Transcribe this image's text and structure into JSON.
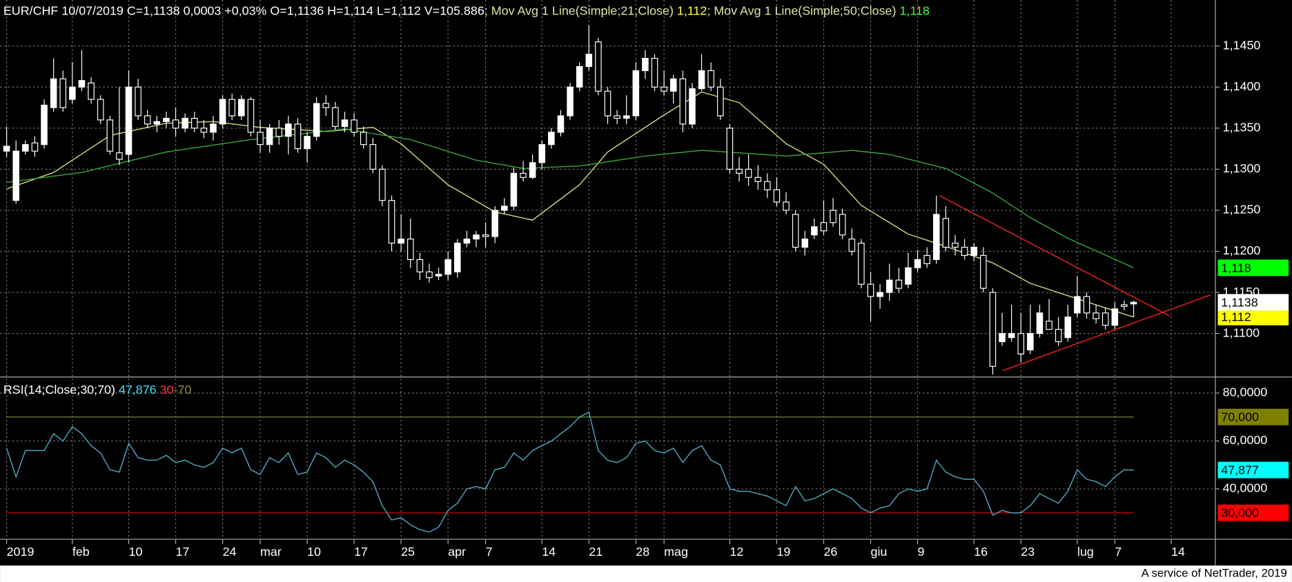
{
  "chart_data": [
    {
      "type": "candlestick",
      "header": [
        {
          "text": "EUR/CHF 10/07/2019 C=1,1138 0,0003 +0,03% O=1,1136 H=1,114 L=1,112 V=105.886",
          "color": "#ffffff"
        },
        {
          "text": "; Mov Avg 1 Line(Simple;21;Close)",
          "color": "#d8e8a0"
        },
        {
          "text": " 1,112",
          "color": "#ffff40"
        },
        {
          "text": "; Mov Avg 1 Line(Simple;50;Close)",
          "color": "#d8e8a0"
        },
        {
          "text": " 1,118",
          "color": "#40ff40"
        }
      ],
      "candles": [
        [
          1.1322,
          1.1352,
          1.1315,
          1.1328
        ],
        [
          1.1262,
          1.1335,
          1.1258,
          1.1322
        ],
        [
          1.1322,
          1.1335,
          1.1318,
          1.133
        ],
        [
          1.1332,
          1.134,
          1.1315,
          1.1322
        ],
        [
          1.133,
          1.1385,
          1.1325,
          1.1378
        ],
        [
          1.1375,
          1.1435,
          1.137,
          1.141
        ],
        [
          1.141,
          1.142,
          1.137,
          1.1375
        ],
        [
          1.1385,
          1.143,
          1.138,
          1.14
        ],
        [
          1.14,
          1.1445,
          1.1395,
          1.1408
        ],
        [
          1.1405,
          1.1412,
          1.138,
          1.1385
        ],
        [
          1.1385,
          1.139,
          1.1355,
          1.136
        ],
        [
          1.136,
          1.1365,
          1.1318,
          1.1322
        ],
        [
          1.132,
          1.14,
          1.1305,
          1.1312
        ],
        [
          1.1318,
          1.142,
          1.1308,
          1.14
        ],
        [
          1.14,
          1.141,
          1.136,
          1.1365
        ],
        [
          1.1365,
          1.1372,
          1.135,
          1.1355
        ],
        [
          1.1355,
          1.1365,
          1.1345,
          1.1358
        ],
        [
          1.1358,
          1.137,
          1.135,
          1.1362
        ],
        [
          1.136,
          1.1375,
          1.134,
          1.135
        ],
        [
          1.135,
          1.1368,
          1.1345,
          1.1362
        ],
        [
          1.1362,
          1.137,
          1.1345,
          1.135
        ],
        [
          1.135,
          1.136,
          1.1338,
          1.1345
        ],
        [
          1.1345,
          1.1365,
          1.1335,
          1.1355
        ],
        [
          1.1355,
          1.139,
          1.135,
          1.1385
        ],
        [
          1.1385,
          1.1392,
          1.136,
          1.1365
        ],
        [
          1.1365,
          1.139,
          1.136,
          1.1385
        ],
        [
          1.1385,
          1.1388,
          1.134,
          1.1345
        ],
        [
          1.1345,
          1.136,
          1.132,
          1.133
        ],
        [
          1.133,
          1.1355,
          1.132,
          1.135
        ],
        [
          1.135,
          1.136,
          1.133,
          1.134
        ],
        [
          1.134,
          1.1365,
          1.1318,
          1.1355
        ],
        [
          1.1355,
          1.1362,
          1.132,
          1.1325
        ],
        [
          1.1325,
          1.1345,
          1.1308,
          1.134
        ],
        [
          1.134,
          1.1388,
          1.1335,
          1.138
        ],
        [
          1.138,
          1.139,
          1.1365,
          1.1375
        ],
        [
          1.1375,
          1.1382,
          1.1348,
          1.1352
        ],
        [
          1.1352,
          1.137,
          1.1345,
          1.136
        ],
        [
          1.136,
          1.1368,
          1.134,
          1.1345
        ],
        [
          1.1345,
          1.1352,
          1.1325,
          1.133
        ],
        [
          1.133,
          1.1338,
          1.1295,
          1.13
        ],
        [
          1.13,
          1.1305,
          1.1255,
          1.1262
        ],
        [
          1.1262,
          1.1268,
          1.12,
          1.121
        ],
        [
          1.121,
          1.1245,
          1.12,
          1.1215
        ],
        [
          1.1215,
          1.124,
          1.118,
          1.119
        ],
        [
          1.119,
          1.1198,
          1.1165,
          1.1175
        ],
        [
          1.1175,
          1.1185,
          1.1162,
          1.1168
        ],
        [
          1.117,
          1.118,
          1.1165,
          1.1172
        ],
        [
          1.1172,
          1.12,
          1.1165,
          1.119
        ],
        [
          1.1175,
          1.1215,
          1.1168,
          1.121
        ],
        [
          1.121,
          1.1225,
          1.1205,
          1.1215
        ],
        [
          1.1215,
          1.1225,
          1.1205,
          1.122
        ],
        [
          1.122,
          1.1235,
          1.1205,
          1.1218
        ],
        [
          1.1218,
          1.1255,
          1.121,
          1.125
        ],
        [
          1.125,
          1.1265,
          1.1245,
          1.1255
        ],
        [
          1.1255,
          1.1302,
          1.125,
          1.1295
        ],
        [
          1.1295,
          1.131,
          1.1285,
          1.129
        ],
        [
          1.129,
          1.1318,
          1.1288,
          1.1308
        ],
        [
          1.1308,
          1.1335,
          1.13,
          1.133
        ],
        [
          1.133,
          1.135,
          1.1325,
          1.1345
        ],
        [
          1.1345,
          1.1372,
          1.134,
          1.1365
        ],
        [
          1.1365,
          1.1405,
          1.136,
          1.14
        ],
        [
          1.14,
          1.143,
          1.1395,
          1.1425
        ],
        [
          1.1425,
          1.1475,
          1.142,
          1.144
        ],
        [
          1.1455,
          1.146,
          1.139,
          1.1395
        ],
        [
          1.1395,
          1.14,
          1.1355,
          1.1365
        ],
        [
          1.1365,
          1.1372,
          1.1355,
          1.1362
        ],
        [
          1.1362,
          1.139,
          1.1355,
          1.1365
        ],
        [
          1.1365,
          1.143,
          1.136,
          1.142
        ],
        [
          1.142,
          1.1445,
          1.141,
          1.1435
        ],
        [
          1.1435,
          1.144,
          1.1395,
          1.14
        ],
        [
          1.14,
          1.142,
          1.139,
          1.1395
        ],
        [
          1.1395,
          1.1415,
          1.138,
          1.141
        ],
        [
          1.141,
          1.142,
          1.1345,
          1.1355
        ],
        [
          1.1355,
          1.1405,
          1.135,
          1.1398
        ],
        [
          1.1398,
          1.144,
          1.1395,
          1.142
        ],
        [
          1.142,
          1.143,
          1.1395,
          1.14
        ],
        [
          1.14,
          1.141,
          1.136,
          1.1365
        ],
        [
          1.135,
          1.1355,
          1.1295,
          1.13
        ],
        [
          1.13,
          1.1315,
          1.1285,
          1.1295
        ],
        [
          1.13,
          1.1318,
          1.128,
          1.129
        ],
        [
          1.129,
          1.1305,
          1.1275,
          1.1285
        ],
        [
          1.1285,
          1.1295,
          1.1265,
          1.1275
        ],
        [
          1.1275,
          1.129,
          1.1255,
          1.126
        ],
        [
          1.126,
          1.1272,
          1.1245,
          1.125
        ],
        [
          1.1245,
          1.125,
          1.12,
          1.1205
        ],
        [
          1.1205,
          1.1225,
          1.1195,
          1.1215
        ],
        [
          1.122,
          1.124,
          1.1215,
          1.123
        ],
        [
          1.1235,
          1.1262,
          1.122,
          1.1225
        ],
        [
          1.125,
          1.1265,
          1.123,
          1.1235
        ],
        [
          1.1245,
          1.1252,
          1.1215,
          1.122
        ],
        [
          1.1215,
          1.1228,
          1.1195,
          1.12
        ],
        [
          1.121,
          1.1215,
          1.1155,
          1.116
        ],
        [
          1.116,
          1.1175,
          1.1115,
          1.1145
        ],
        [
          1.1145,
          1.116,
          1.113,
          1.115
        ],
        [
          1.115,
          1.1185,
          1.114,
          1.1165
        ],
        [
          1.1165,
          1.118,
          1.115,
          1.1155
        ],
        [
          1.116,
          1.1198,
          1.1155,
          1.118
        ],
        [
          1.118,
          1.1202,
          1.1175,
          1.119
        ],
        [
          1.1195,
          1.1205,
          1.118,
          1.1185
        ],
        [
          1.119,
          1.1268,
          1.1185,
          1.1245
        ],
        [
          1.124,
          1.1255,
          1.12,
          1.1205
        ],
        [
          1.121,
          1.122,
          1.1195,
          1.1205
        ],
        [
          1.1205,
          1.1215,
          1.119,
          1.1195
        ],
        [
          1.1195,
          1.121,
          1.1188,
          1.1205
        ],
        [
          1.1195,
          1.1205,
          1.115,
          1.1155
        ],
        [
          1.115,
          1.1155,
          1.105,
          1.106
        ],
        [
          1.109,
          1.1125,
          1.1085,
          1.11
        ],
        [
          1.1095,
          1.1135,
          1.109,
          1.11
        ],
        [
          1.11,
          1.1125,
          1.1065,
          1.1075
        ],
        [
          1.108,
          1.1135,
          1.1075,
          1.11
        ],
        [
          1.11,
          1.1135,
          1.1095,
          1.1125
        ],
        [
          1.1115,
          1.1142,
          1.1105,
          1.1105
        ],
        [
          1.1105,
          1.112,
          1.1085,
          1.109
        ],
        [
          1.1095,
          1.1135,
          1.109,
          1.112
        ],
        [
          1.1125,
          1.117,
          1.112,
          1.1145
        ],
        [
          1.1145,
          1.115,
          1.1118,
          1.1125
        ],
        [
          1.1125,
          1.1135,
          1.1112,
          1.1118
        ],
        [
          1.1125,
          1.1132,
          1.1105,
          1.111
        ],
        [
          1.111,
          1.1138,
          1.1105,
          1.113
        ],
        [
          1.1135,
          1.114,
          1.1128,
          1.1133
        ],
        [
          1.1136,
          1.114,
          1.112,
          1.1138
        ]
      ],
      "xlim": [
        -0.7,
        128.7
      ],
      "xticks": [
        {
          "value": 0,
          "label": "2019"
        },
        {
          "value": 7,
          "label": "feb"
        },
        {
          "value": 13,
          "label": "10"
        },
        {
          "value": 18,
          "label": "17"
        },
        {
          "value": 23,
          "label": "24"
        },
        {
          "value": 27,
          "label": "mar"
        },
        {
          "value": 32,
          "label": "10"
        },
        {
          "value": 37,
          "label": "17"
        },
        {
          "value": 42,
          "label": "25"
        },
        {
          "value": 47,
          "label": "apr"
        },
        {
          "value": 51,
          "label": "7"
        },
        {
          "value": 57,
          "label": "14"
        },
        {
          "value": 62,
          "label": "21"
        },
        {
          "value": 67,
          "label": "28"
        },
        {
          "value": 70,
          "label": "mag"
        },
        {
          "value": 77,
          "label": "12"
        },
        {
          "value": 82,
          "label": "19"
        },
        {
          "value": 87,
          "label": "26"
        },
        {
          "value": 92,
          "label": "giu"
        },
        {
          "value": 97,
          "label": "9"
        },
        {
          "value": 103,
          "label": "16"
        },
        {
          "value": 108,
          "label": "23"
        },
        {
          "value": 114,
          "label": "lug"
        },
        {
          "value": 118,
          "label": "7"
        },
        {
          "value": 124,
          "label": "14"
        }
      ],
      "ylim": [
        1.1047,
        1.1506
      ],
      "yticks": [
        {
          "value": 1.11,
          "label": "1,1100"
        },
        {
          "value": 1.115,
          "label": "1,1150"
        },
        {
          "value": 1.12,
          "label": "1,1200"
        },
        {
          "value": 1.125,
          "label": "1,1250"
        },
        {
          "value": 1.13,
          "label": "1,1300"
        },
        {
          "value": 1.135,
          "label": "1,1350"
        },
        {
          "value": 1.14,
          "label": "1,1400"
        },
        {
          "value": 1.145,
          "label": "1,1450"
        }
      ],
      "grid": true,
      "series": [
        {
          "color": "#d7d77a",
          "x": [
            0,
            5,
            11,
            17,
            22,
            27,
            34,
            39,
            42,
            47,
            52,
            56,
            61,
            64,
            70,
            74,
            78,
            83,
            87,
            91,
            96,
            100,
            105,
            109,
            113,
            120
          ],
          "values": [
            1.1276,
            1.1296,
            1.1341,
            1.1356,
            1.1358,
            1.1351,
            1.1346,
            1.1351,
            1.1331,
            1.1281,
            1.1248,
            1.1238,
            1.1281,
            1.1321,
            1.1366,
            1.1394,
            1.1381,
            1.1331,
            1.1306,
            1.1256,
            1.1221,
            1.1206,
            1.1186,
            1.1161,
            1.1146,
            1.112
          ]
        },
        {
          "color": "#3aa33a",
          "x": [
            0,
            8,
            17,
            26,
            36,
            43,
            50,
            55,
            61,
            68,
            74,
            83,
            90,
            94,
            100,
            105,
            109,
            113,
            120
          ],
          "values": [
            1.1284,
            1.1296,
            1.1321,
            1.1336,
            1.1349,
            1.1336,
            1.1311,
            1.1301,
            1.1304,
            1.1316,
            1.1323,
            1.1316,
            1.1323,
            1.1318,
            1.1301,
            1.1271,
            1.1241,
            1.1216,
            1.118
          ]
        }
      ],
      "trendlines": {
        "color": "#e02020",
        "lines": [
          [
            99.3,
            1.1268,
            123.9,
            1.1121
          ],
          [
            106.1,
            1.1055,
            128.2,
            1.1147
          ]
        ]
      },
      "badges": [
        {
          "value": 1.118,
          "label": "1,118",
          "color": "#00ff00"
        },
        {
          "value": 1.112,
          "label": "1,112",
          "color": "#ffff00"
        },
        {
          "value": 1.1138,
          "label": "1,1138",
          "color": "#ffffff"
        }
      ]
    },
    {
      "type": "line",
      "header": [
        {
          "text": "RSI(14;Close;30;70)",
          "color": "#ffffff"
        },
        {
          "text": " 47,876",
          "color": "#40e0f0"
        },
        {
          "text": " 30",
          "color": "#ff3030"
        },
        {
          "text": "-70",
          "color": "#909030"
        }
      ],
      "color": "#4aa8c0",
      "values": [
        57,
        45,
        56,
        56,
        56,
        63,
        60,
        66,
        63,
        58,
        55,
        48,
        47,
        59,
        53,
        52,
        52,
        54,
        51,
        52,
        50,
        49,
        51,
        57,
        55,
        57,
        48,
        46,
        53,
        51,
        55,
        46,
        47,
        55,
        53,
        49,
        52,
        50,
        47,
        43,
        33,
        27,
        28,
        25,
        23,
        22,
        24,
        31,
        34,
        40,
        41,
        40,
        48,
        49,
        55,
        52,
        56,
        58,
        60,
        63,
        66,
        70,
        72,
        56,
        52,
        51,
        53,
        59,
        60,
        56,
        55,
        57,
        51,
        56,
        58,
        52,
        50,
        40,
        39,
        39,
        38,
        37,
        35,
        33,
        41,
        35,
        36,
        38,
        40,
        38,
        36,
        32,
        30,
        32,
        33,
        38,
        40,
        39,
        40,
        52,
        47,
        45,
        44,
        44,
        39,
        29,
        31,
        30,
        30,
        33,
        38,
        36,
        34,
        39,
        48,
        44,
        43,
        41,
        45,
        48,
        47.876
      ],
      "xlim": [
        -0.7,
        128.7
      ],
      "ylim": [
        19,
        86
      ],
      "yticks": [
        {
          "value": 40,
          "label": "40,0000"
        },
        {
          "value": 60,
          "label": "60,0000"
        },
        {
          "value": 80,
          "label": "80,0000"
        }
      ],
      "grid": true,
      "levels": [
        {
          "value": 70,
          "color": "#6b8e23"
        },
        {
          "value": 30,
          "color": "#e00000"
        }
      ],
      "badges": [
        {
          "value": 70,
          "label": "70,000",
          "color": "#808000"
        },
        {
          "value": 47.877,
          "label": "47,877",
          "color": "#00ffff"
        },
        {
          "value": 30,
          "label": "30,000",
          "color": "#ff0000"
        }
      ]
    }
  ],
  "footer": "A service of NetTrader, 2019"
}
